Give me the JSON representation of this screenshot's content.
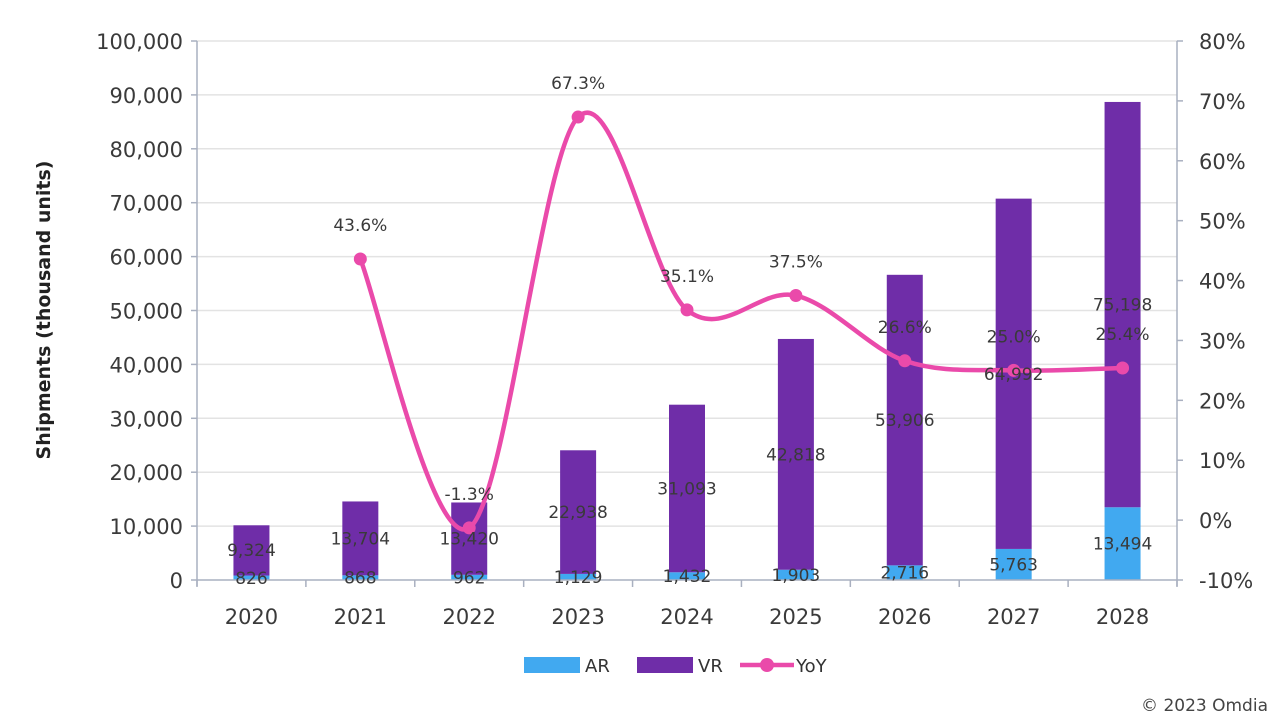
{
  "chart_data": {
    "type": "bar",
    "subtype": "stacked-bar-with-line",
    "title": "",
    "xlabel": "",
    "ylabel": "Shipments (thousand units)",
    "y2label": "",
    "categories": [
      "2020",
      "2021",
      "2022",
      "2023",
      "2024",
      "2025",
      "2026",
      "2027",
      "2028"
    ],
    "series": [
      {
        "name": "AR",
        "type": "bar",
        "axis": "left",
        "color": "#41a9f0",
        "values": [
          826,
          868,
          962,
          1129,
          1432,
          1903,
          2716,
          5763,
          13494
        ],
        "labels": [
          "826",
          "868",
          "962",
          "1,129",
          "1,432",
          "1,903",
          "2,716",
          "5,763",
          "13,494"
        ]
      },
      {
        "name": "VR",
        "type": "bar",
        "axis": "left",
        "color": "#6f2da8",
        "values": [
          9324,
          13704,
          13420,
          22938,
          31093,
          42818,
          53906,
          64992,
          75198
        ],
        "labels": [
          "9,324",
          "13,704",
          "13,420",
          "22,938",
          "31,093",
          "42,818",
          "53,906",
          "64,992",
          "75,198"
        ]
      },
      {
        "name": "YoY",
        "type": "line",
        "axis": "right",
        "color": "#ea4aaa",
        "values": [
          null,
          43.6,
          -1.3,
          67.3,
          35.1,
          37.5,
          26.6,
          25.0,
          25.4
        ],
        "labels": [
          "",
          "43.6%",
          "-1.3%",
          "67.3%",
          "35.1%",
          "37.5%",
          "26.6%",
          "25.0%",
          "25.4%"
        ]
      }
    ],
    "yaxis_left": {
      "range": [
        0,
        100000
      ],
      "ticks": [
        0,
        10000,
        20000,
        30000,
        40000,
        50000,
        60000,
        70000,
        80000,
        90000,
        100000
      ],
      "tick_labels": [
        "0",
        "10,000",
        "20,000",
        "30,000",
        "40,000",
        "50,000",
        "60,000",
        "70,000",
        "80,000",
        "90,000",
        "100,000"
      ]
    },
    "yaxis_right": {
      "range": [
        -10,
        80
      ],
      "ticks": [
        -10,
        0,
        10,
        20,
        30,
        40,
        50,
        60,
        70,
        80
      ],
      "tick_labels": [
        "-10%",
        "0%",
        "10%",
        "20%",
        "30%",
        "40%",
        "50%",
        "60%",
        "70%",
        "80%"
      ]
    },
    "grid": true,
    "legend": {
      "position": "bottom",
      "entries": [
        "AR",
        "VR",
        "YoY"
      ]
    }
  },
  "footer": {
    "copyright": "© 2023 Omdia"
  }
}
